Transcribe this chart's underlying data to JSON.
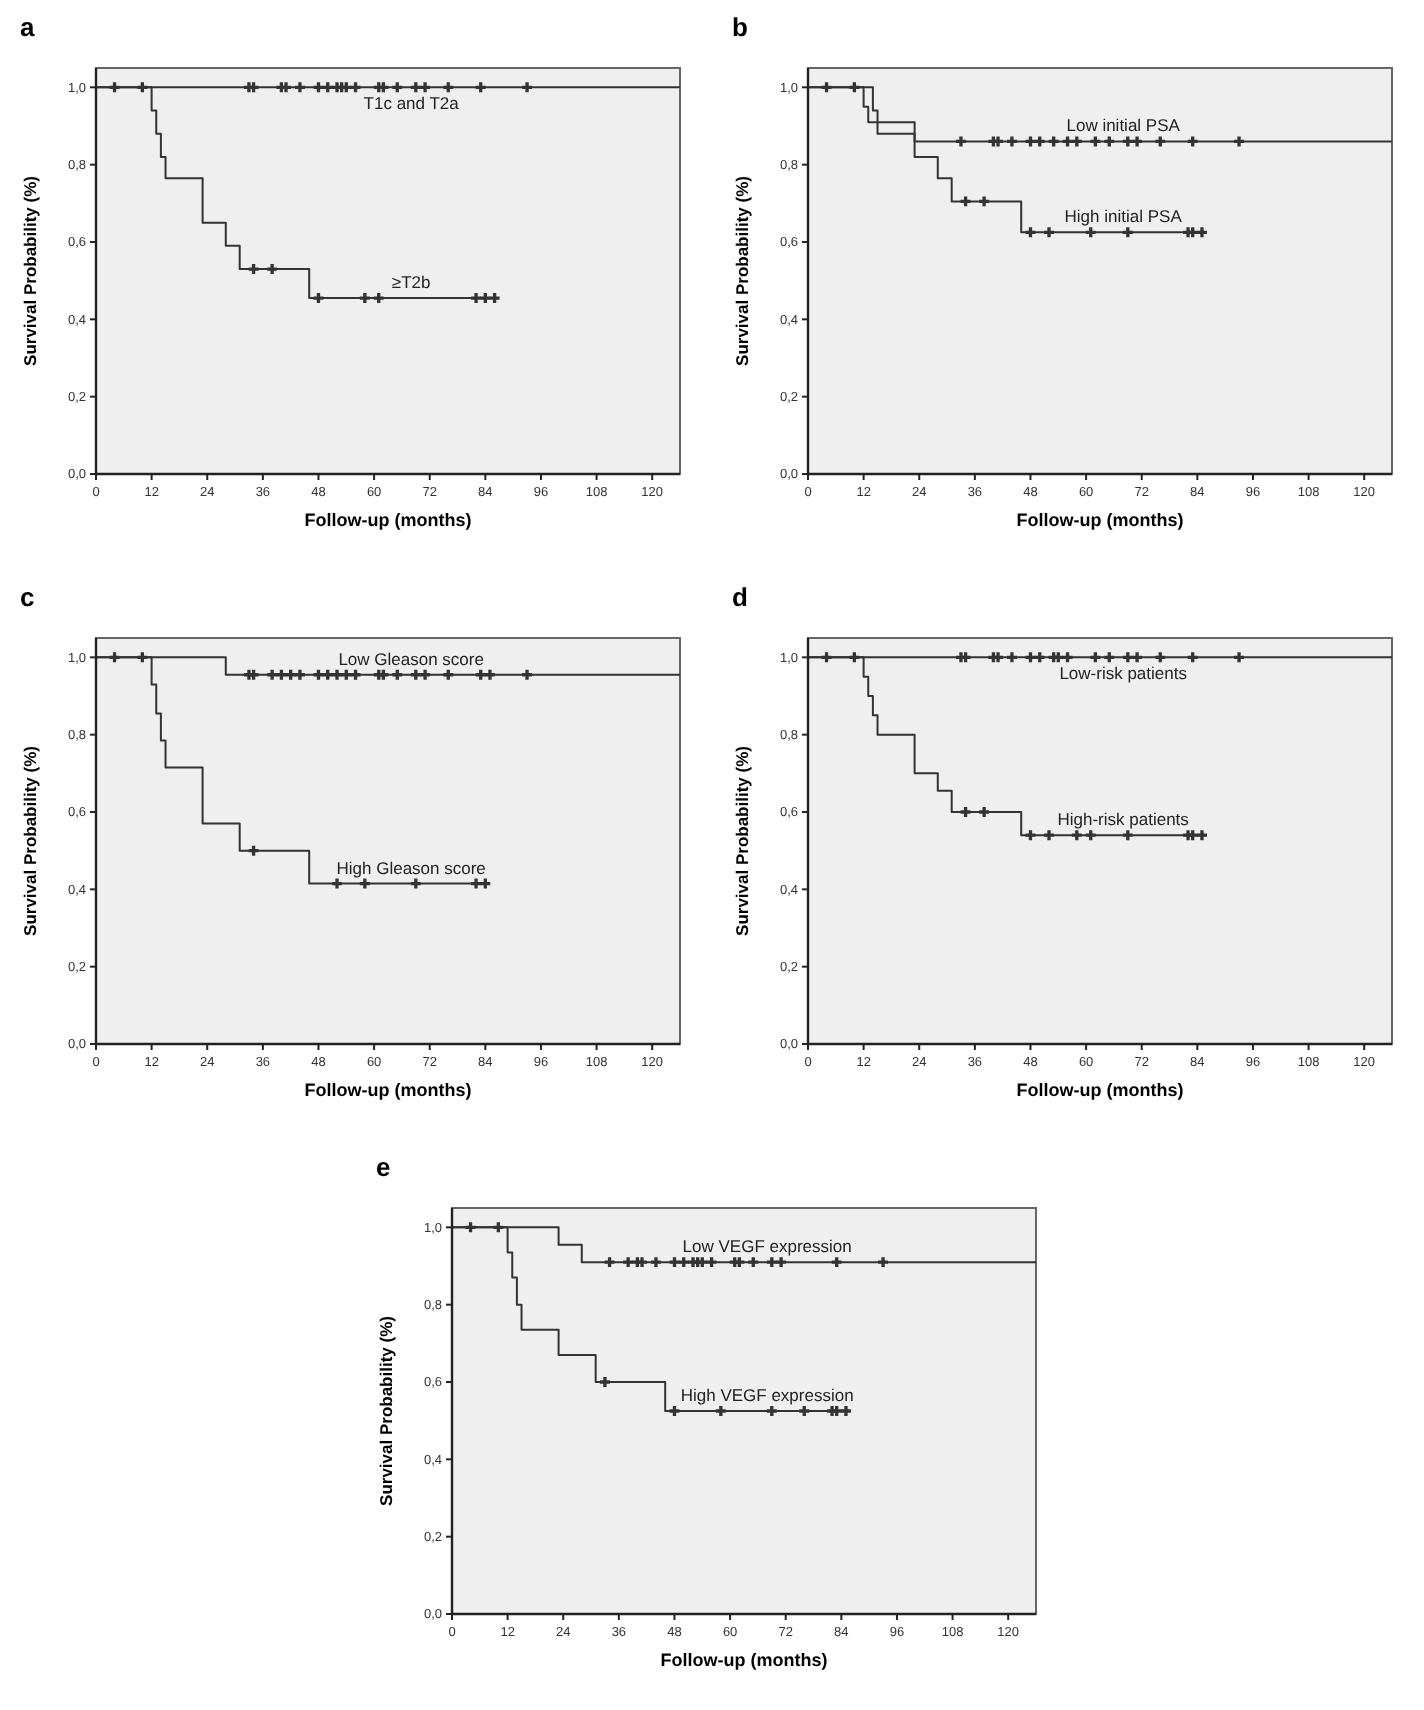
{
  "chart_data": [
    {
      "type": "step",
      "title": "a",
      "xlabel": "Follow-up (months)",
      "ylabel": "Survival Probability (%)",
      "xlim": [
        0,
        126
      ],
      "ylim": [
        0,
        1.05
      ],
      "xticks": [
        0,
        12,
        24,
        36,
        48,
        60,
        72,
        84,
        96,
        108,
        120
      ],
      "yticks": [
        {
          "value": 0,
          "label": "0,0"
        },
        {
          "value": 0.2,
          "label": "0,2"
        },
        {
          "value": 0.4,
          "label": "0,4"
        },
        {
          "value": 0.6,
          "label": "0,6"
        },
        {
          "value": 0.8,
          "label": "0,8"
        },
        {
          "value": 1,
          "label": "1,0"
        }
      ],
      "legend": false,
      "grid": false,
      "series": [
        {
          "name": "T1c and T2a",
          "color": "#333333",
          "x": [
            0,
            126
          ],
          "values": [
            1,
            1
          ]
        },
        {
          "name": "≥T2b",
          "color": "#333333",
          "x": [
            0,
            12,
            13,
            14,
            15,
            23,
            28,
            31,
            46,
            86
          ],
          "values": [
            1,
            0.94,
            0.88,
            0.82,
            0.765,
            0.65,
            0.59,
            0.53,
            0.455,
            0.455
          ]
        },
        {
          "type": "scatter",
          "marker": "cross",
          "color": "#333333",
          "x": [
            4,
            10,
            33,
            34,
            40,
            41,
            44,
            48,
            50,
            52,
            53,
            54,
            56,
            61,
            62,
            65,
            69,
            71,
            76,
            83,
            93
          ],
          "values": [
            1,
            1,
            1,
            1,
            1,
            1,
            1,
            1,
            1,
            1,
            1,
            1,
            1,
            1,
            1,
            1,
            1,
            1,
            1,
            1,
            1
          ]
        },
        {
          "type": "scatter",
          "marker": "cross",
          "color": "#333333",
          "x": [
            34,
            38,
            48,
            58,
            61,
            82,
            84,
            86
          ],
          "values": [
            0.53,
            0.53,
            0.455,
            0.455,
            0.455,
            0.455,
            0.455,
            0.455
          ]
        }
      ]
    },
    {
      "type": "step",
      "title": "b",
      "xlabel": "Follow-up (months)",
      "ylabel": "Survival Probability (%)",
      "xlim": [
        0,
        126
      ],
      "ylim": [
        0,
        1.05
      ],
      "xticks": [
        0,
        12,
        24,
        36,
        48,
        60,
        72,
        84,
        96,
        108,
        120
      ],
      "yticks": [
        {
          "value": 0,
          "label": "0,0"
        },
        {
          "value": 0.2,
          "label": "0,2"
        },
        {
          "value": 0.4,
          "label": "0,4"
        },
        {
          "value": 0.6,
          "label": "0,6"
        },
        {
          "value": 0.8,
          "label": "0,8"
        },
        {
          "value": 1,
          "label": "1,0"
        }
      ],
      "legend": false,
      "grid": false,
      "series": [
        {
          "name": "Low initial PSA",
          "color": "#333333",
          "x": [
            0,
            14,
            15,
            23,
            126
          ],
          "values": [
            1,
            0.94,
            0.88,
            0.86,
            0.86
          ]
        },
        {
          "name": "High initial PSA",
          "color": "#333333",
          "x": [
            0,
            12,
            13,
            23,
            28,
            31,
            46,
            85
          ],
          "values": [
            1,
            0.95,
            0.91,
            0.82,
            0.765,
            0.705,
            0.625,
            0.625
          ]
        },
        {
          "type": "scatter",
          "marker": "cross",
          "color": "#333333",
          "x": [
            4,
            10,
            33,
            40,
            41,
            44,
            48,
            50,
            53,
            56,
            58,
            62,
            65,
            69,
            71,
            76,
            83,
            93
          ],
          "values": [
            1,
            1,
            0.86,
            0.86,
            0.86,
            0.86,
            0.86,
            0.86,
            0.86,
            0.86,
            0.86,
            0.86,
            0.86,
            0.86,
            0.86,
            0.86,
            0.86,
            0.86
          ]
        },
        {
          "type": "scatter",
          "marker": "cross",
          "color": "#333333",
          "x": [
            34,
            38,
            48,
            52,
            61,
            69,
            82,
            83,
            85
          ],
          "values": [
            0.705,
            0.705,
            0.625,
            0.625,
            0.625,
            0.625,
            0.625,
            0.625,
            0.625
          ]
        }
      ]
    },
    {
      "type": "step",
      "title": "c",
      "xlabel": "Follow-up (months)",
      "ylabel": "Survival Probability (%)",
      "xlim": [
        0,
        126
      ],
      "ylim": [
        0,
        1.05
      ],
      "xticks": [
        0,
        12,
        24,
        36,
        48,
        60,
        72,
        84,
        96,
        108,
        120
      ],
      "yticks": [
        {
          "value": 0,
          "label": "0,0"
        },
        {
          "value": 0.2,
          "label": "0,2"
        },
        {
          "value": 0.4,
          "label": "0,4"
        },
        {
          "value": 0.6,
          "label": "0,6"
        },
        {
          "value": 0.8,
          "label": "0,8"
        },
        {
          "value": 1,
          "label": "1,0"
        }
      ],
      "legend": false,
      "grid": false,
      "series": [
        {
          "name": "Low Gleason score",
          "color": "#333333",
          "x": [
            0,
            28,
            126
          ],
          "values": [
            1,
            0.955,
            0.955
          ]
        },
        {
          "name": "High Gleason score",
          "color": "#333333",
          "x": [
            0,
            12,
            13,
            14,
            15,
            23,
            31,
            46,
            84
          ],
          "values": [
            1,
            0.93,
            0.855,
            0.785,
            0.715,
            0.57,
            0.5,
            0.415,
            0.415
          ]
        },
        {
          "type": "scatter",
          "marker": "cross",
          "color": "#333333",
          "x": [
            4,
            10,
            33,
            34,
            38,
            40,
            42,
            44,
            48,
            50,
            52,
            54,
            56,
            61,
            62,
            65,
            69,
            71,
            76,
            83,
            85,
            93
          ],
          "values": [
            1,
            1,
            0.955,
            0.955,
            0.955,
            0.955,
            0.955,
            0.955,
            0.955,
            0.955,
            0.955,
            0.955,
            0.955,
            0.955,
            0.955,
            0.955,
            0.955,
            0.955,
            0.955,
            0.955,
            0.955,
            0.955
          ]
        },
        {
          "type": "scatter",
          "marker": "cross",
          "color": "#333333",
          "x": [
            34,
            52,
            58,
            69,
            82,
            84
          ],
          "values": [
            0.5,
            0.415,
            0.415,
            0.415,
            0.415,
            0.415
          ]
        }
      ]
    },
    {
      "type": "step",
      "title": "d",
      "xlabel": "Follow-up (months)",
      "ylabel": "Survival Probability (%)",
      "xlim": [
        0,
        126
      ],
      "ylim": [
        0,
        1.05
      ],
      "xticks": [
        0,
        12,
        24,
        36,
        48,
        60,
        72,
        84,
        96,
        108,
        120
      ],
      "yticks": [
        {
          "value": 0,
          "label": "0,0"
        },
        {
          "value": 0.2,
          "label": "0,2"
        },
        {
          "value": 0.4,
          "label": "0,4"
        },
        {
          "value": 0.6,
          "label": "0,6"
        },
        {
          "value": 0.8,
          "label": "0,8"
        },
        {
          "value": 1,
          "label": "1,0"
        }
      ],
      "legend": false,
      "grid": false,
      "series": [
        {
          "name": "Low-risk patients",
          "color": "#333333",
          "x": [
            0,
            126
          ],
          "values": [
            1,
            1
          ]
        },
        {
          "name": "High-risk patients",
          "color": "#333333",
          "x": [
            0,
            12,
            13,
            14,
            15,
            23,
            28,
            31,
            46,
            86
          ],
          "values": [
            1,
            0.95,
            0.9,
            0.85,
            0.8,
            0.7,
            0.655,
            0.6,
            0.54,
            0.54
          ]
        },
        {
          "type": "scatter",
          "marker": "cross",
          "color": "#333333",
          "x": [
            4,
            10,
            33,
            34,
            40,
            41,
            44,
            48,
            50,
            53,
            54,
            56,
            62,
            65,
            69,
            71,
            76,
            83,
            93
          ],
          "values": [
            1,
            1,
            1,
            1,
            1,
            1,
            1,
            1,
            1,
            1,
            1,
            1,
            1,
            1,
            1,
            1,
            1,
            1,
            1
          ]
        },
        {
          "type": "scatter",
          "marker": "cross",
          "color": "#333333",
          "x": [
            34,
            38,
            48,
            52,
            58,
            61,
            69,
            82,
            83,
            85
          ],
          "values": [
            0.6,
            0.6,
            0.54,
            0.54,
            0.54,
            0.54,
            0.54,
            0.54,
            0.54,
            0.54
          ]
        }
      ]
    },
    {
      "type": "step",
      "title": "e",
      "xlabel": "Follow-up (months)",
      "ylabel": "Survival Probability (%)",
      "xlim": [
        0,
        126
      ],
      "ylim": [
        0,
        1.05
      ],
      "xticks": [
        0,
        12,
        24,
        36,
        48,
        60,
        72,
        84,
        96,
        108,
        120
      ],
      "yticks": [
        {
          "value": 0,
          "label": "0,0"
        },
        {
          "value": 0.2,
          "label": "0,2"
        },
        {
          "value": 0.4,
          "label": "0,4"
        },
        {
          "value": 0.6,
          "label": "0,6"
        },
        {
          "value": 0.8,
          "label": "0,8"
        },
        {
          "value": 1,
          "label": "1,0"
        }
      ],
      "legend": false,
      "grid": false,
      "series": [
        {
          "name": "Low VEGF expression",
          "color": "#333333",
          "x": [
            0,
            23,
            28,
            126
          ],
          "values": [
            1,
            0.955,
            0.91,
            0.91
          ]
        },
        {
          "name": "High VEGF expression",
          "color": "#333333",
          "x": [
            0,
            12,
            13,
            14,
            15,
            23,
            31,
            46,
            85
          ],
          "values": [
            1,
            0.935,
            0.87,
            0.8,
            0.735,
            0.67,
            0.6,
            0.525,
            0.525
          ]
        },
        {
          "type": "scatter",
          "marker": "cross",
          "color": "#333333",
          "x": [
            4,
            10,
            34,
            38,
            40,
            41,
            44,
            48,
            50,
            52,
            53,
            54,
            56,
            61,
            62,
            65,
            69,
            71,
            83,
            93
          ],
          "values": [
            1,
            1,
            0.91,
            0.91,
            0.91,
            0.91,
            0.91,
            0.91,
            0.91,
            0.91,
            0.91,
            0.91,
            0.91,
            0.91,
            0.91,
            0.91,
            0.91,
            0.91,
            0.91,
            0.91
          ]
        },
        {
          "type": "scatter",
          "marker": "cross",
          "color": "#333333",
          "x": [
            33,
            48,
            58,
            69,
            76,
            82,
            83,
            85
          ],
          "values": [
            0.6,
            0.525,
            0.525,
            0.525,
            0.525,
            0.525,
            0.525,
            0.525
          ]
        }
      ]
    }
  ]
}
